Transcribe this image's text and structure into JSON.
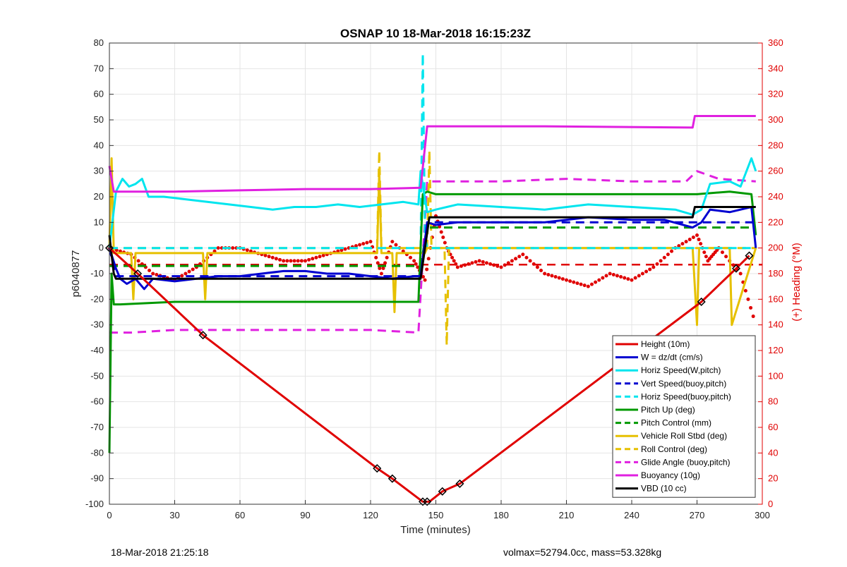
{
  "chart_data": {
    "type": "line",
    "title": "OSNAP 10 18-Mar-2018 16:15:23Z",
    "xlabel": "Time (minutes)",
    "ylabel": "p6040877",
    "ylabel_right": "(+) Heading (°M)",
    "xlim": [
      0,
      300
    ],
    "ylim": [
      -100,
      80
    ],
    "ylim_right": [
      0,
      360
    ],
    "x_ticks": [
      0,
      30,
      60,
      90,
      120,
      150,
      180,
      210,
      240,
      270,
      300
    ],
    "y_ticks": [
      80,
      70,
      60,
      50,
      40,
      30,
      20,
      10,
      0,
      -10,
      -20,
      -30,
      -40,
      -50,
      -60,
      -70,
      -80,
      -90,
      -100
    ],
    "y_ticks_right": [
      0,
      20,
      40,
      60,
      80,
      100,
      120,
      140,
      160,
      180,
      200,
      220,
      240,
      260,
      280,
      300,
      320,
      340,
      360
    ],
    "grid": true,
    "legend_position": "bottom-right",
    "series": [
      {
        "name": "Height (10m)",
        "color": "#e00000",
        "style": "solid",
        "x": [
          0,
          13,
          43,
          123,
          130,
          144,
          147,
          153,
          161,
          272,
          288,
          294
        ],
        "y": [
          0,
          -10,
          -34,
          -86,
          -90,
          -99,
          -99,
          -95,
          -92,
          -21,
          -8,
          -3
        ]
      },
      {
        "name": "W = dz/dt (cm/s)",
        "color": "#0000d0",
        "style": "solid",
        "x": [
          0,
          3,
          5,
          8,
          12,
          16,
          20,
          30,
          40,
          50,
          60,
          70,
          80,
          90,
          100,
          110,
          120,
          130,
          140,
          143,
          146,
          150,
          160,
          180,
          200,
          210,
          220,
          240,
          255,
          268,
          272,
          276,
          285,
          290,
          295,
          297
        ],
        "y": [
          0,
          -8,
          -12,
          -14,
          -12,
          -16,
          -12,
          -13,
          -12,
          -11,
          -11,
          -10,
          -9,
          -9,
          -10,
          -10,
          -11,
          -12,
          -11,
          -11,
          10,
          9,
          10,
          10,
          10,
          11,
          12,
          11,
          11,
          8,
          10,
          15,
          14,
          15,
          16,
          0
        ]
      },
      {
        "name": "Horiz Speed(W,pitch)",
        "color": "#00e5ee",
        "style": "solid",
        "x": [
          0,
          3,
          6,
          9,
          12,
          15,
          18,
          25,
          35,
          45,
          55,
          65,
          75,
          85,
          95,
          105,
          115,
          125,
          135,
          142,
          143,
          146,
          150,
          160,
          180,
          200,
          220,
          240,
          260,
          268,
          272,
          276,
          285,
          290,
          295,
          297
        ],
        "y": [
          0,
          22,
          27,
          24,
          25,
          27,
          20,
          20,
          19,
          18,
          17,
          16,
          15,
          16,
          16,
          17,
          16,
          17,
          18,
          17,
          30,
          14,
          15,
          17,
          16,
          15,
          17,
          16,
          15,
          13,
          15,
          25,
          26,
          24,
          35,
          30
        ]
      },
      {
        "name": "Vert Speed(buoy,pitch)",
        "color": "#0000d0",
        "style": "dashed",
        "x": [
          0,
          3,
          143,
          146,
          297
        ],
        "y": [
          0,
          -11,
          -11,
          10,
          10
        ]
      },
      {
        "name": "Horiz Speed(buoy,pitch)",
        "color": "#00e5ee",
        "style": "dashed",
        "x": [
          0,
          143,
          144,
          145,
          146,
          297
        ],
        "y": [
          0,
          0,
          76,
          5,
          0,
          0
        ]
      },
      {
        "name": "Pitch Up (deg)",
        "color": "#009900",
        "style": "solid",
        "x": [
          0,
          1,
          2,
          5,
          30,
          60,
          90,
          120,
          142,
          144,
          146,
          150,
          160,
          200,
          240,
          270,
          285,
          295,
          297
        ],
        "y": [
          -80,
          -10,
          -22,
          -22,
          -21,
          -21,
          -21,
          -21,
          -21,
          21,
          22,
          21,
          21,
          21,
          21,
          21,
          22,
          21,
          5
        ]
      },
      {
        "name": "Pitch Control (mm)",
        "color": "#009900",
        "style": "dashed",
        "x": [
          0,
          143,
          146,
          297
        ],
        "y": [
          -7,
          -7,
          8,
          8
        ]
      },
      {
        "name": "Vehicle Roll Stbd (deg)",
        "color": "#e6c000",
        "style": "solid",
        "x": [
          0,
          1,
          2,
          10,
          11,
          12,
          43,
          44,
          45,
          123,
          124,
          125,
          130,
          131,
          132,
          145,
          146,
          160,
          200,
          250,
          268,
          270,
          271,
          285,
          286,
          297
        ],
        "y": [
          0,
          35,
          -2,
          -2,
          -20,
          -2,
          -2,
          -20,
          -2,
          -2,
          30,
          -2,
          -2,
          -25,
          -2,
          -2,
          0,
          0,
          0,
          0,
          0,
          -30,
          0,
          0,
          -30,
          0
        ]
      },
      {
        "name": "Roll Control (deg)",
        "color": "#e6c000",
        "style": "dashed",
        "x": [
          0,
          123,
          124,
          125,
          146,
          147,
          148,
          154,
          155,
          156,
          297
        ],
        "y": [
          0,
          0,
          38,
          0,
          0,
          38,
          0,
          0,
          -38,
          0,
          0
        ]
      },
      {
        "name": "Glide Angle (buoy,pitch)",
        "color": "#e020e0",
        "style": "dashed",
        "x": [
          0,
          10,
          30,
          60,
          90,
          120,
          142,
          146,
          150,
          180,
          210,
          240,
          265,
          270,
          280,
          297
        ],
        "y": [
          -33,
          -33,
          -32,
          -32,
          -32,
          -32,
          -33,
          26,
          26,
          26,
          27,
          26,
          26,
          30,
          27,
          26
        ]
      },
      {
        "name": "Buoyancy (10g)",
        "color": "#e020e0",
        "style": "solid",
        "x": [
          0,
          2,
          30,
          60,
          90,
          120,
          143,
          146,
          200,
          268,
          269,
          297
        ],
        "y": [
          32,
          22,
          22,
          22.5,
          23,
          23,
          23.5,
          47.5,
          47.5,
          47,
          51.5,
          51.5
        ]
      },
      {
        "name": "VBD (10 cc)",
        "color": "#000000",
        "style": "solid",
        "x": [
          0,
          2,
          3,
          143,
          147,
          268,
          269,
          297
        ],
        "y": [
          5,
          -10,
          -12,
          -12,
          12,
          12,
          16,
          16
        ]
      }
    ],
    "heading_series": {
      "name": "Heading",
      "color": "#e00000",
      "units_axis": "right",
      "x": [
        0,
        10,
        20,
        30,
        40,
        50,
        60,
        70,
        80,
        90,
        100,
        110,
        120,
        125,
        130,
        140,
        145,
        150,
        155,
        160,
        170,
        180,
        190,
        200,
        210,
        220,
        230,
        240,
        250,
        260,
        270,
        275,
        280,
        290,
        297
      ],
      "y": [
        200,
        195,
        180,
        175,
        185,
        200,
        200,
        195,
        190,
        190,
        195,
        200,
        205,
        180,
        205,
        190,
        175,
        225,
        200,
        185,
        190,
        185,
        195,
        180,
        175,
        170,
        180,
        175,
        185,
        200,
        210,
        190,
        200,
        180,
        140
      ]
    },
    "marker_x": [
      0,
      13,
      43,
      123,
      130,
      144,
      146,
      153,
      161,
      272,
      288,
      294
    ],
    "heading_ref": {
      "color": "#e00000",
      "value": 187
    }
  },
  "footer": {
    "left": "18-Mar-2018 21:25:18",
    "right": "volmax=52794.0cc, mass=53.328kg"
  }
}
